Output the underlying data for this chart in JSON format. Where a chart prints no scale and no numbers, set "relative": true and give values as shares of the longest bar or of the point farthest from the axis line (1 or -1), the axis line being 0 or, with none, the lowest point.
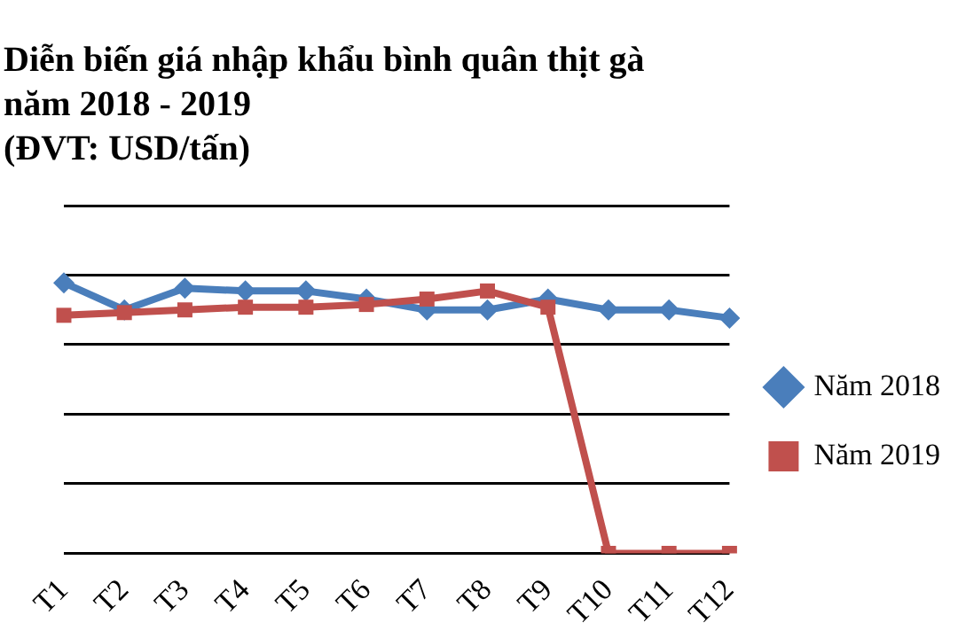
{
  "chart_data": {
    "type": "line",
    "title": "Diễn biến giá nhập khẩu bình quân thịt gà năm 2018 - 2019",
    "subtitle": "(ĐVT: USD/tấn)",
    "relative": true,
    "categories": [
      "T1",
      "T2",
      "T3",
      "T4",
      "T5",
      "T6",
      "T7",
      "T8",
      "T9",
      "T10",
      "T11",
      "T12"
    ],
    "series": [
      {
        "name": "Năm 2018",
        "color": "#4a7ebb",
        "marker": "diamond",
        "values": [
          1,
          0.9,
          0.98,
          0.97,
          0.97,
          0.94,
          0.9,
          0.9,
          0.94,
          0.9,
          0.9,
          0.87
        ]
      },
      {
        "name": "Năm 2019",
        "color": "#c0504d",
        "marker": "square",
        "values": [
          0.88,
          0.89,
          0.9,
          0.91,
          0.91,
          0.92,
          0.94,
          0.97,
          0.91,
          0,
          0,
          0
        ]
      }
    ],
    "grid": "y",
    "legend": "right"
  }
}
